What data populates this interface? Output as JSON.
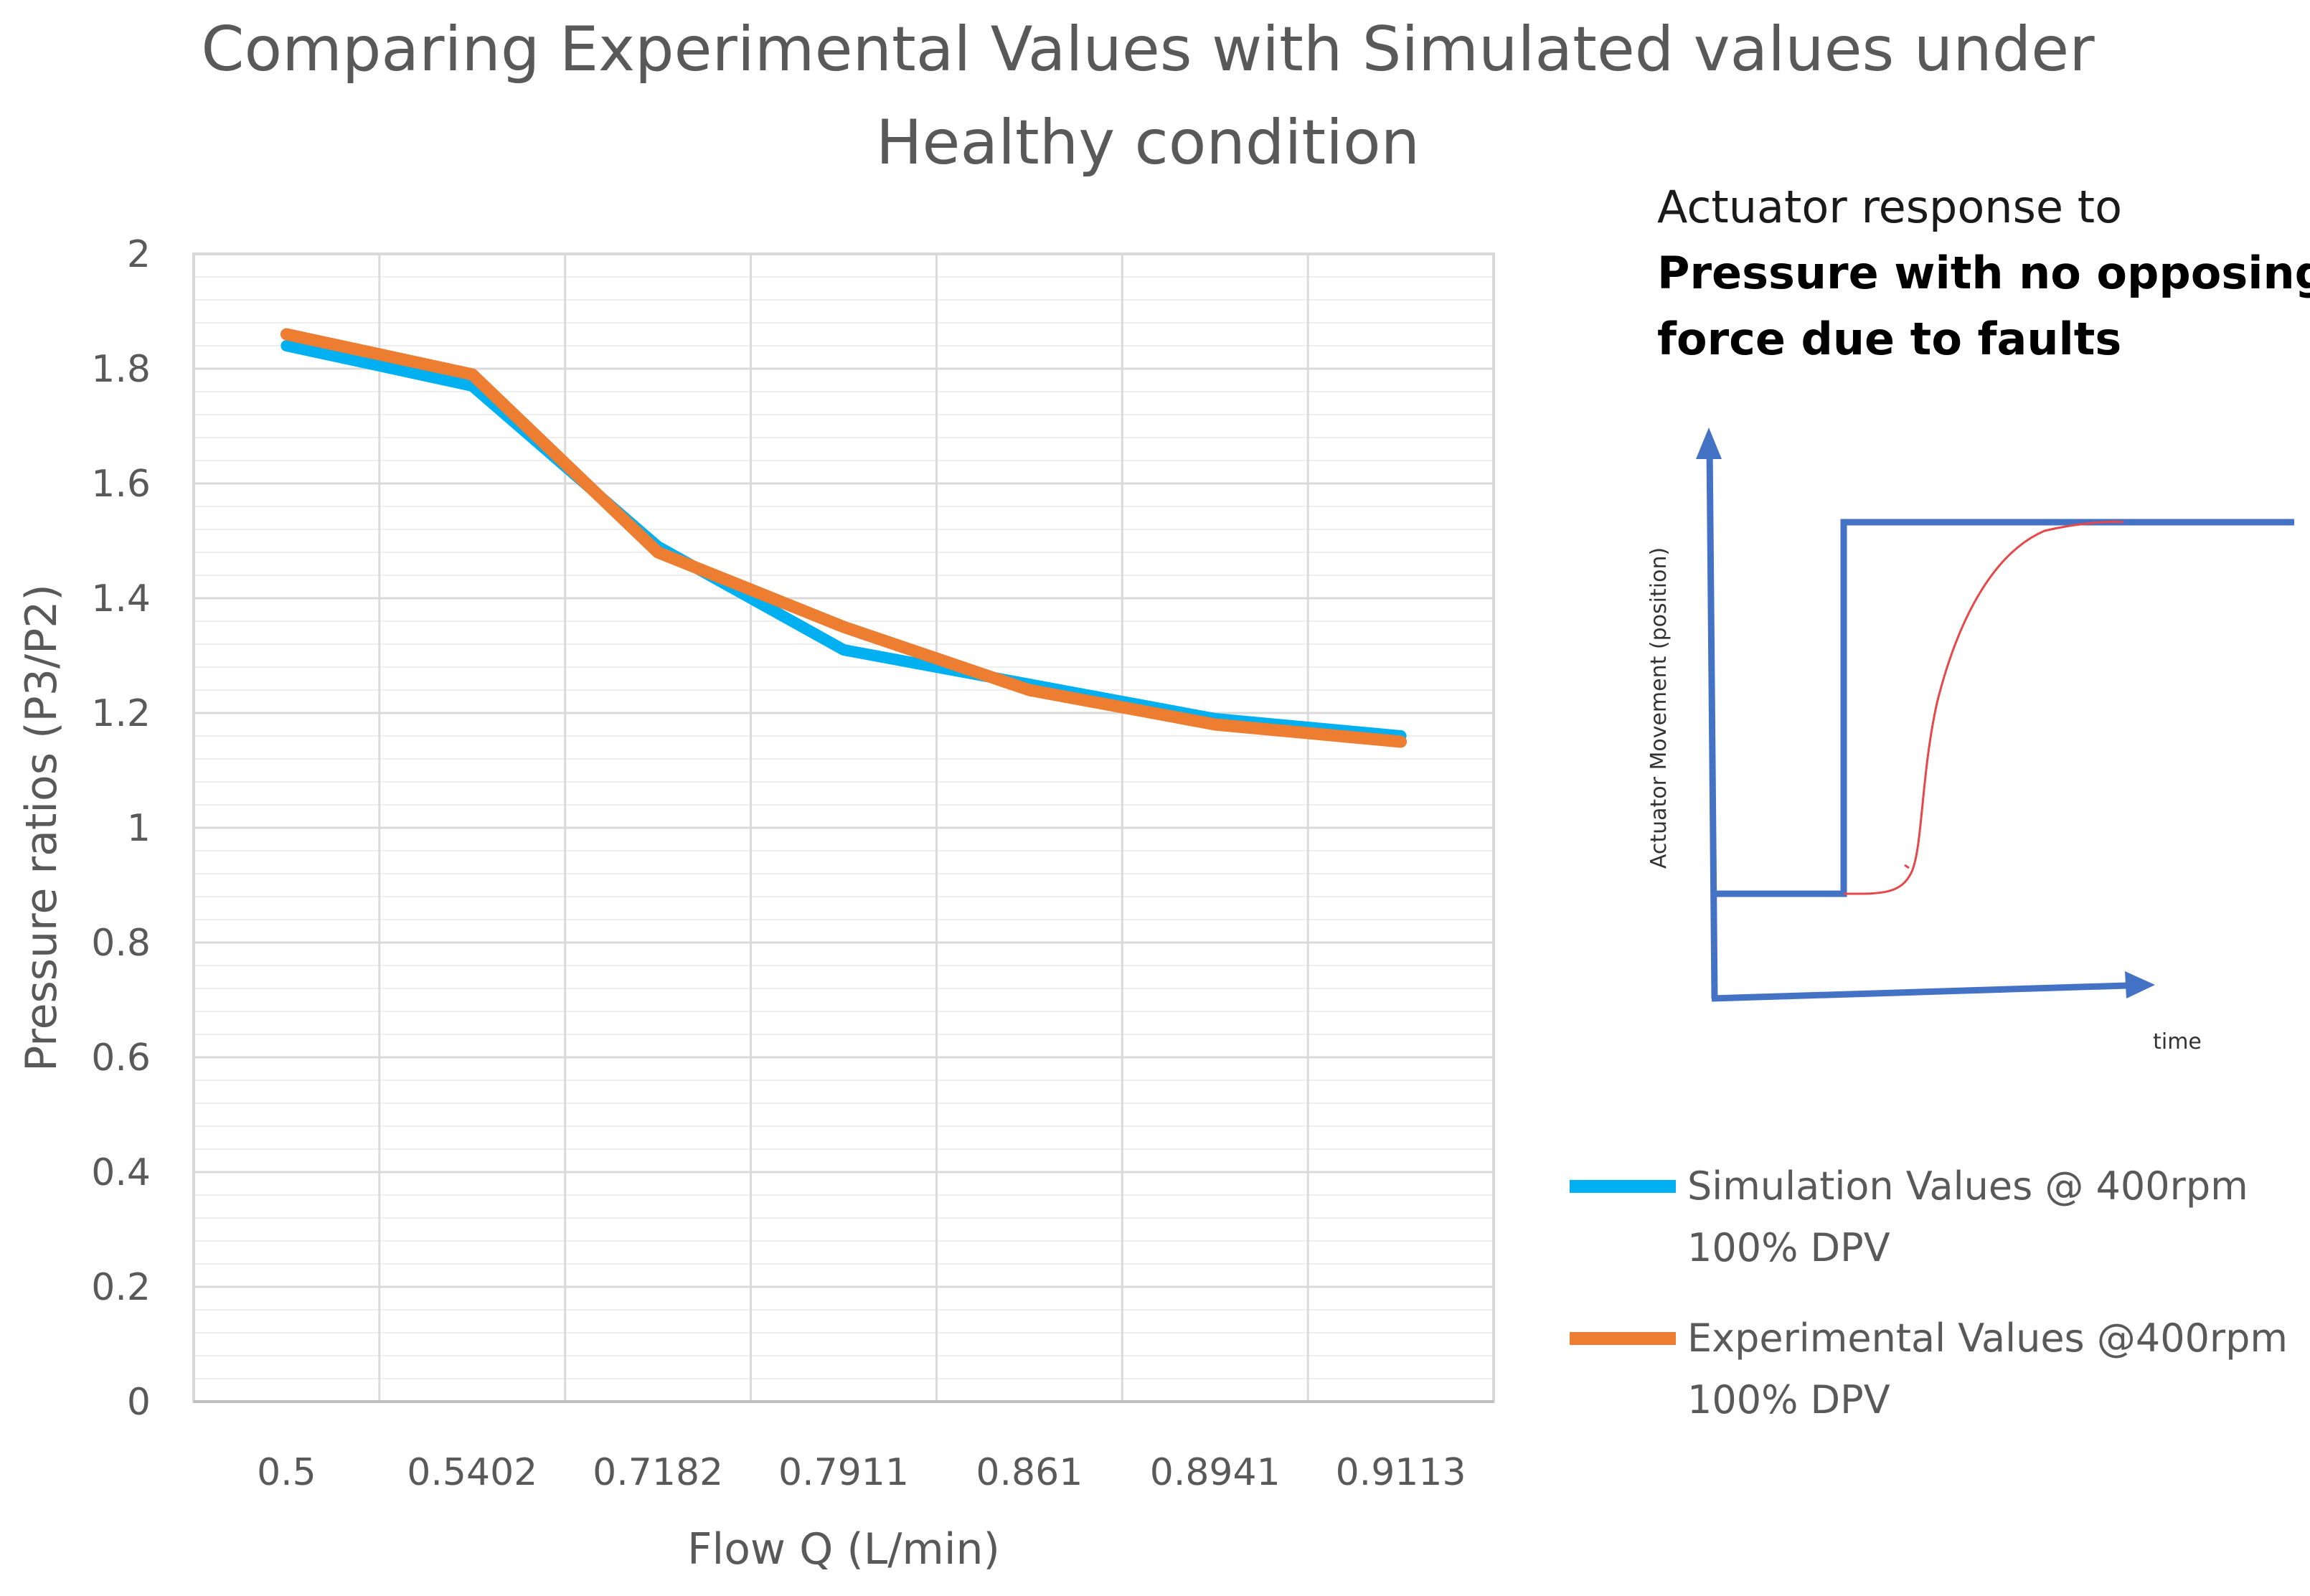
{
  "chart_data": {
    "type": "line",
    "title_lines": [
      "Comparing Experimental Values with Simulated values under",
      "Healthy condition"
    ],
    "xlabel": "Flow Q (L/min)",
    "ylabel": "Pressure ratios (P3/P2)",
    "categories": [
      "0.5",
      "0.5402",
      "0.7182",
      "0.7911",
      "0.861",
      "0.8941",
      "0.9113"
    ],
    "ylim": [
      0,
      2
    ],
    "yticks": [
      "0",
      "0.2",
      "0.4",
      "0.6",
      "0.8",
      "1",
      "1.2",
      "1.4",
      "1.6",
      "1.8",
      "2"
    ],
    "grid": true,
    "series": [
      {
        "name_lines": [
          "Simulation Values @ 400rpm",
          "100% DPV"
        ],
        "color": "#00b0f0",
        "values": [
          1.84,
          1.77,
          1.49,
          1.31,
          1.25,
          1.19,
          1.16
        ]
      },
      {
        "name_lines": [
          "Experimental Values @400rpm",
          "100% DPV"
        ],
        "color": "#ed7d31",
        "values": [
          1.86,
          1.79,
          1.48,
          1.35,
          1.24,
          1.18,
          1.15
        ]
      }
    ],
    "legend_position": "right-bottom"
  },
  "annotation": {
    "line1": "Actuator response to",
    "line2_bold": "Pressure with no opposing",
    "line3_bold": "force due to faults",
    "ylabel": "Actuator Movement (position)",
    "xlabel": "time",
    "axis_color": "#4472c4",
    "curve_color": "#e8474a"
  }
}
